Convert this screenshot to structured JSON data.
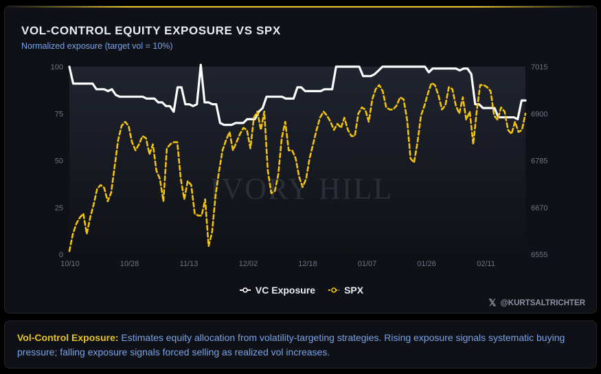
{
  "title": "VOL-CONTROL EQUITY EXPOSURE VS SPX",
  "subtitle": "Normalized exposure (target vol = 10%)",
  "watermark": "IVORY HILL",
  "credit": "@KURTSALTRICHTER",
  "credit_icon": "x-logo-icon",
  "note": {
    "label": "Vol-Control Exposure:",
    "text": " Estimates equity allocation from volatility-targeting strategies. Rising exposure signals systematic buying pressure; falling exposure signals forced selling as realized vol increases."
  },
  "colors": {
    "exposure": "#ffffff",
    "spx": "#f2c40f",
    "background": "#0f1116",
    "accent": "#e7c428"
  },
  "chart_data": {
    "type": "line",
    "x_ticks": [
      "10/10",
      "10/28",
      "11/13",
      "12/02",
      "12/18",
      "01/07",
      "01/26",
      "02/11"
    ],
    "y_left": {
      "ticks": [
        0,
        25,
        50,
        75,
        100
      ],
      "range": [
        0,
        100
      ]
    },
    "y_right": {
      "ticks": [
        6555,
        6670,
        6785,
        6900,
        7015
      ],
      "range": [
        6555,
        7015
      ]
    },
    "legend_position": "bottom-center",
    "grid": false,
    "series": [
      {
        "name": "VC Exposure",
        "axis": "left",
        "style": "solid",
        "values": [
          100,
          91,
          91,
          91,
          91,
          91,
          91,
          88,
          88,
          88,
          87,
          88,
          85,
          84,
          84,
          84,
          84,
          84,
          84,
          84,
          83,
          83,
          83,
          81,
          81,
          79,
          79,
          76,
          89,
          89,
          80,
          80,
          79,
          80,
          101,
          81,
          81,
          80,
          80,
          70,
          69,
          69,
          69,
          70,
          70,
          70,
          72,
          72,
          72,
          76,
          78,
          84,
          84,
          84,
          84,
          84,
          83,
          83,
          83,
          89,
          89,
          87,
          87,
          87,
          87,
          87,
          88,
          88,
          88,
          100,
          100,
          100,
          100,
          100,
          100,
          100,
          95,
          95,
          95,
          96,
          98,
          100,
          100,
          100,
          100,
          100,
          100,
          100,
          100,
          100,
          100,
          100,
          100,
          97,
          99,
          99,
          99,
          99,
          99,
          99,
          99,
          98,
          99,
          99,
          96,
          80,
          80,
          78,
          78,
          78,
          78,
          73,
          73,
          73,
          73,
          73,
          72,
          82,
          82
        ]
      },
      {
        "name": "SPX",
        "axis": "right",
        "values": [
          6563,
          6605,
          6630,
          6645,
          6655,
          6605,
          6646,
          6678,
          6716,
          6725,
          6718,
          6685,
          6706,
          6770,
          6835,
          6870,
          6880,
          6870,
          6830,
          6810,
          6825,
          6845,
          6840,
          6800,
          6825,
          6760,
          6740,
          6685,
          6815,
          6825,
          6830,
          6830,
          6740,
          6690,
          6735,
          6725,
          6655,
          6650,
          6650,
          6690,
          6575,
          6610,
          6700,
          6760,
          6810,
          6835,
          6855,
          6810,
          6830,
          6850,
          6865,
          6860,
          6815,
          6890,
          6905,
          6860,
          6905,
          6760,
          6705,
          6710,
          6750,
          6840,
          6880,
          6810,
          6810,
          6790,
          6745,
          6720,
          6740,
          6790,
          6825,
          6860,
          6890,
          6905,
          6895,
          6880,
          6860,
          6875,
          6865,
          6890,
          6860,
          6845,
          6845,
          6900,
          6915,
          6910,
          6880,
          6935,
          6960,
          6970,
          6955,
          6915,
          6910,
          6910,
          6920,
          6940,
          6935,
          6885,
          6790,
          6780,
          6830,
          6895,
          6920,
          6950,
          6975,
          6970,
          6945,
          6910,
          6920,
          6965,
          6960,
          6920,
          6900,
          6940,
          6885,
          6905,
          6825,
          6905,
          6970,
          6970,
          6965,
          6955,
          6895,
          6885,
          6915,
          6905,
          6860,
          6850,
          6880,
          6855,
          6860,
          6900
        ]
      }
    ]
  }
}
